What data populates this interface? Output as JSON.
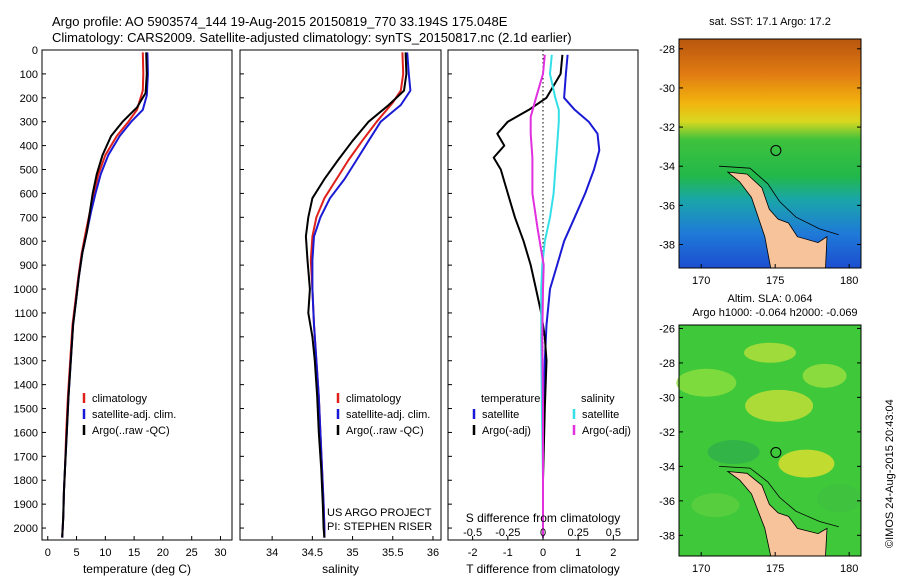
{
  "header": {
    "line1": "Argo profile: AO 5903574_144 19-Aug-2015 20150819_770 33.194S 175.048E",
    "line2": "Climatology: CARS2009. Satellite-adjusted climatology: synTS_20150817.nc (2.1d earlier)"
  },
  "credits": {
    "project": "US ARGO PROJECT",
    "pi": "PI: STEPHEN RISER"
  },
  "stamp": "©IMOS 24-Aug-2015 20:43:04",
  "colors": {
    "climatology": "#e0201a",
    "satellite": "#1a1ad6",
    "argo": "#000000",
    "salinity_satellite": "#33e0e8",
    "salinity_argo": "#e030e0",
    "land": "#f7c39a"
  },
  "legend": {
    "climatology": "climatology",
    "satellite_adj": "satellite-adj. clim.",
    "argo_raw": "Argo(..raw -QC)",
    "temperature": "temperature",
    "salinity": "salinity",
    "satellite": "satellite",
    "argo_adj": "Argo(-adj)"
  },
  "map_labels": {
    "sst": "sat. SST: 17.1 Argo: 17.2",
    "sla": "Altim. SLA: 0.064",
    "h": "Argo h1000: -0.064 h2000: -0.069"
  },
  "chart_data": [
    {
      "type": "line",
      "xlabel": "temperature (deg C)",
      "xlim": [
        -1,
        32
      ],
      "ylim": [
        2050,
        0
      ],
      "xticks": [
        0,
        5,
        10,
        15,
        20,
        25,
        30
      ],
      "yticks": [
        0,
        100,
        200,
        300,
        400,
        500,
        600,
        700,
        800,
        900,
        1000,
        1100,
        1200,
        1300,
        1400,
        1500,
        1600,
        1700,
        1800,
        1900,
        2000
      ],
      "series": [
        {
          "name": "climatology",
          "x": [
            16.5,
            16.6,
            16.5,
            15.5,
            14.0,
            12.0,
            10.0,
            8.8,
            8.0,
            7.3,
            6.6,
            5.9,
            5.3,
            4.8,
            4.3,
            3.9,
            3.5,
            3.2,
            3.0,
            2.8,
            2.7,
            2.6,
            2.5
          ],
          "y": [
            10,
            100,
            170,
            250,
            300,
            360,
            440,
            520,
            600,
            680,
            760,
            850,
            950,
            1050,
            1150,
            1300,
            1450,
            1600,
            1750,
            1850,
            1950,
            2000,
            2040
          ]
        },
        {
          "name": "satellite-adj. clim.",
          "x": [
            17.3,
            17.4,
            17.2,
            16.5,
            14.5,
            12.5,
            10.5,
            9.2,
            8.3,
            7.5,
            6.8,
            6.0,
            5.4,
            4.9,
            4.4,
            4.0,
            3.6,
            3.3,
            3.0,
            2.8,
            2.7,
            2.6,
            2.5
          ],
          "y": [
            10,
            100,
            190,
            250,
            300,
            360,
            440,
            520,
            600,
            680,
            760,
            850,
            950,
            1050,
            1150,
            1300,
            1450,
            1600,
            1750,
            1850,
            1950,
            2000,
            2040
          ]
        },
        {
          "name": "Argo(..raw -QC)",
          "x": [
            17.1,
            17.2,
            17.0,
            15.5,
            13.0,
            11.0,
            9.5,
            8.5,
            7.8,
            7.3,
            6.8,
            6.0,
            5.4,
            4.9,
            4.4,
            4.0,
            3.6,
            3.3,
            3.0,
            2.8,
            2.7,
            2.6,
            2.5
          ],
          "y": [
            10,
            100,
            180,
            240,
            300,
            360,
            440,
            520,
            600,
            680,
            760,
            850,
            950,
            1050,
            1150,
            1300,
            1450,
            1600,
            1750,
            1850,
            1950,
            2000,
            2040
          ]
        }
      ]
    },
    {
      "type": "line",
      "xlabel": "salinity",
      "xlim": [
        33.6,
        36.1
      ],
      "ylim": [
        2050,
        0
      ],
      "xticks": [
        34,
        34.5,
        35,
        35.5,
        36
      ],
      "series": [
        {
          "name": "climatology",
          "x": [
            35.62,
            35.63,
            35.6,
            35.5,
            35.3,
            35.12,
            34.95,
            34.8,
            34.65,
            34.55,
            34.5,
            34.48,
            34.5,
            34.52,
            34.55,
            34.58,
            34.6,
            34.62,
            34.64,
            34.65,
            34.65
          ],
          "y": [
            10,
            100,
            170,
            220,
            300,
            380,
            460,
            540,
            620,
            700,
            780,
            880,
            1000,
            1150,
            1300,
            1450,
            1600,
            1750,
            1900,
            2000,
            2040
          ]
        },
        {
          "name": "satellite-adj. clim.",
          "x": [
            35.68,
            35.7,
            35.72,
            35.6,
            35.35,
            35.2,
            35.05,
            34.9,
            34.72,
            34.6,
            34.52,
            34.5,
            34.5,
            34.52,
            34.55,
            34.58,
            34.6,
            34.62,
            34.64,
            34.65,
            34.65
          ],
          "y": [
            10,
            100,
            170,
            230,
            300,
            380,
            460,
            540,
            620,
            700,
            780,
            880,
            1000,
            1150,
            1300,
            1450,
            1600,
            1750,
            1900,
            2000,
            2040
          ]
        },
        {
          "name": "Argo(..raw -QC)",
          "x": [
            35.66,
            35.67,
            35.64,
            35.45,
            35.2,
            35.0,
            34.82,
            34.65,
            34.5,
            34.45,
            34.42,
            34.44,
            34.47,
            34.45,
            34.5,
            34.53,
            34.56,
            34.58,
            34.61,
            34.63,
            34.64,
            34.65
          ],
          "y": [
            10,
            100,
            170,
            230,
            300,
            380,
            460,
            540,
            620,
            700,
            780,
            880,
            1000,
            1100,
            1200,
            1300,
            1450,
            1600,
            1750,
            1900,
            2000,
            2040
          ]
        }
      ]
    },
    {
      "type": "line",
      "xlabel": "T difference from climatology",
      "xlabel_top": "S difference from climatology",
      "xlim": [
        -2.7,
        2.7
      ],
      "ylim": [
        2050,
        0
      ],
      "xticks": [
        -2,
        -1,
        0,
        1,
        2
      ],
      "xticks_top": [
        "-0.5",
        "-0.25",
        "0",
        "0.25",
        "0.5"
      ],
      "series": [
        {
          "name": "temperature satellite",
          "x": [
            0.7,
            0.65,
            0.6,
            0.9,
            1.3,
            1.55,
            1.6,
            1.45,
            1.2,
            0.9,
            0.6,
            0.4,
            0.2,
            0.1,
            0.05,
            0.02,
            0,
            0,
            0,
            0
          ],
          "y": [
            20,
            100,
            200,
            250,
            300,
            350,
            420,
            500,
            600,
            700,
            800,
            900,
            1000,
            1150,
            1300,
            1500,
            1700,
            1850,
            1950,
            2040
          ]
        },
        {
          "name": "temperature Argo(-adj)",
          "x": [
            0.55,
            0.5,
            0.1,
            -0.4,
            -1.0,
            -1.3,
            -1.1,
            -1.4,
            -1.2,
            -1.1,
            -1.0,
            -0.8,
            -0.55,
            -0.35,
            -0.2,
            -0.05,
            0.05,
            0.1,
            0.05,
            0,
            0
          ],
          "y": [
            20,
            100,
            200,
            250,
            300,
            350,
            400,
            450,
            500,
            550,
            600,
            700,
            800,
            900,
            1000,
            1100,
            1200,
            1300,
            1500,
            1800,
            2040
          ]
        },
        {
          "name": "salinity satellite",
          "x": [
            0.25,
            0.2,
            0.35,
            0.45,
            0.45,
            0.4,
            0.35,
            0.3,
            0.2,
            0.05,
            -0.02,
            -0.05,
            -0.05,
            -0.03,
            0,
            0
          ],
          "y": [
            20,
            100,
            200,
            250,
            300,
            400,
            500,
            600,
            700,
            800,
            900,
            1000,
            1200,
            1500,
            1800,
            2040
          ]
        },
        {
          "name": "salinity Argo(-adj)",
          "x": [
            0.05,
            0.0,
            -0.2,
            -0.35,
            -0.35,
            -0.3,
            -0.3,
            -0.15,
            0.02,
            0,
            -0.02,
            0,
            0
          ],
          "y": [
            20,
            100,
            200,
            280,
            350,
            450,
            600,
            750,
            900,
            1000,
            1200,
            1500,
            2040
          ]
        }
      ]
    },
    {
      "type": "heatmap",
      "title": "sat. SST: 17.1 Argo: 17.2",
      "xlim": [
        168.5,
        180.8
      ],
      "ylim": [
        -39.2,
        -27.5
      ],
      "xticks": [
        170,
        175,
        180
      ],
      "yticks": [
        -28,
        -30,
        -32,
        -34,
        -36,
        -38
      ],
      "marker": {
        "lon": 175.048,
        "lat": -33.194
      }
    },
    {
      "type": "heatmap",
      "title": "Altim. SLA: 0.064",
      "subtitle": "Argo h1000: -0.064 h2000: -0.069",
      "xlim": [
        168.5,
        180.8
      ],
      "ylim": [
        -39.2,
        -25.8
      ],
      "xticks": [
        170,
        175,
        180
      ],
      "yticks": [
        -26,
        -28,
        -30,
        -32,
        -34,
        -36,
        -38
      ],
      "marker": {
        "lon": 175.048,
        "lat": -33.194
      }
    }
  ]
}
